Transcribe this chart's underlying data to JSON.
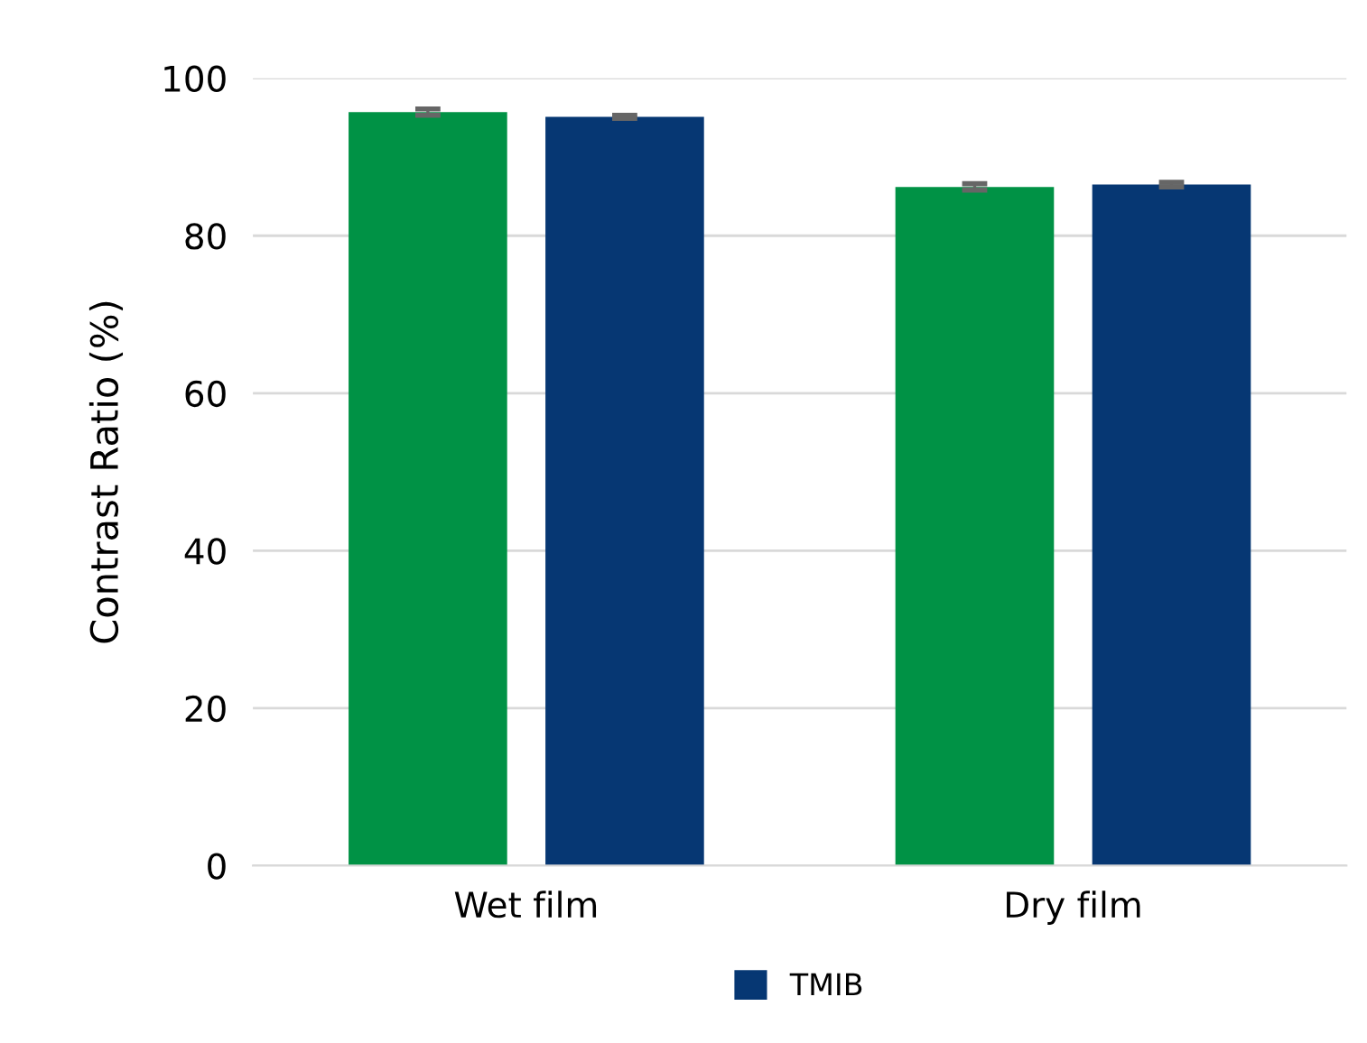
{
  "chart_data": {
    "type": "bar",
    "ylabel": "Contrast Ratio (%)",
    "categories": [
      "Wet film",
      "Dry film"
    ],
    "series": [
      {
        "color": "#009245",
        "values": [
          95.7,
          86.2
        ],
        "errors": [
          0.4,
          0.4
        ]
      },
      {
        "name": "TMIB",
        "color": "#063773",
        "values": [
          95.1,
          86.5
        ],
        "errors": [
          0.2,
          0.3
        ]
      }
    ],
    "ylim": [
      0,
      100
    ],
    "yticks": [
      0,
      20,
      40,
      60,
      80,
      100
    ],
    "grid": "y",
    "legend": "bottom"
  }
}
